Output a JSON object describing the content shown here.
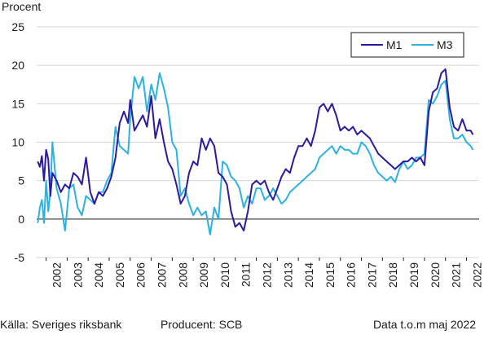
{
  "chart_data": {
    "type": "line",
    "ylabel": "Procent",
    "ylim": [
      -5,
      25
    ],
    "yticks": [
      -5,
      0,
      5,
      10,
      15,
      20,
      25
    ],
    "xlim": [
      2001.55,
      2022.6
    ],
    "xtick_labels": [
      "2002",
      "2003",
      "2004",
      "2005",
      "2006",
      "2007",
      "2008",
      "2009",
      "2010",
      "2011",
      "2012",
      "2013",
      "2014",
      "2015",
      "2016",
      "2017",
      "2018",
      "2019",
      "2020",
      "2021",
      "2022"
    ],
    "grid": "horizontal",
    "legend_position": "top-right",
    "series": [
      {
        "name": "M1",
        "color": "#2b1a9e",
        "x": [
          2001.6,
          2001.7,
          2001.8,
          2001.9,
          2002.0,
          2002.1,
          2002.2,
          2002.3,
          2002.5,
          2002.7,
          2002.9,
          2003.1,
          2003.3,
          2003.5,
          2003.7,
          2003.9,
          2004.1,
          2004.3,
          2004.5,
          2004.7,
          2004.9,
          2005.1,
          2005.3,
          2005.5,
          2005.7,
          2005.9,
          2006.0,
          2006.2,
          2006.4,
          2006.6,
          2006.8,
          2007.0,
          2007.2,
          2007.4,
          2007.6,
          2007.8,
          2008.0,
          2008.2,
          2008.4,
          2008.6,
          2008.8,
          2009.0,
          2009.2,
          2009.4,
          2009.6,
          2009.8,
          2010.0,
          2010.2,
          2010.4,
          2010.6,
          2010.8,
          2011.0,
          2011.2,
          2011.4,
          2011.6,
          2011.8,
          2012.0,
          2012.2,
          2012.4,
          2012.6,
          2012.8,
          2013.0,
          2013.2,
          2013.4,
          2013.6,
          2013.8,
          2014.0,
          2014.2,
          2014.4,
          2014.6,
          2014.8,
          2015.0,
          2015.2,
          2015.4,
          2015.6,
          2015.8,
          2016.0,
          2016.2,
          2016.4,
          2016.6,
          2016.8,
          2017.0,
          2017.2,
          2017.4,
          2017.6,
          2017.8,
          2018.0,
          2018.2,
          2018.4,
          2018.6,
          2018.8,
          2019.0,
          2019.2,
          2019.4,
          2019.6,
          2019.8,
          2020.0,
          2020.2,
          2020.4,
          2020.6,
          2020.8,
          2021.0,
          2021.2,
          2021.4,
          2021.6,
          2021.8,
          2022.0,
          2022.2,
          2022.3
        ],
        "values": [
          7.5,
          6.8,
          8.2,
          5.0,
          9.0,
          7.8,
          3.0,
          6.0,
          5.0,
          3.5,
          4.5,
          4.0,
          6.0,
          5.5,
          4.5,
          8.0,
          3.5,
          2.0,
          3.5,
          3.0,
          4.0,
          5.5,
          8.0,
          12.5,
          14.0,
          12.5,
          15.5,
          11.5,
          12.5,
          13.5,
          12.0,
          16.0,
          10.5,
          13.0,
          10.0,
          7.5,
          6.5,
          4.5,
          2.0,
          3.0,
          6.0,
          7.5,
          7.0,
          10.5,
          9.0,
          10.5,
          9.5,
          6.0,
          5.5,
          4.5,
          1.0,
          -1.0,
          -0.5,
          -1.5,
          1.0,
          4.5,
          5.0,
          4.5,
          5.0,
          3.5,
          2.5,
          4.0,
          5.5,
          6.5,
          6.0,
          8.0,
          9.5,
          9.5,
          10.5,
          9.5,
          11.5,
          14.5,
          15.0,
          14.0,
          15.0,
          13.5,
          11.5,
          12.0,
          11.5,
          12.0,
          11.0,
          11.5,
          11.0,
          10.5,
          9.5,
          8.5,
          8.0,
          7.5,
          7.0,
          6.5,
          7.0,
          7.5,
          7.5,
          8.0,
          7.5,
          8.0,
          7.0,
          14.0,
          16.5,
          17.0,
          19.0,
          19.5,
          14.5,
          12.0,
          11.5,
          13.0,
          11.5,
          11.5,
          11.0
        ]
      },
      {
        "name": "M3",
        "color": "#2bb2e0",
        "x": [
          2001.6,
          2001.7,
          2001.8,
          2001.9,
          2002.0,
          2002.1,
          2002.2,
          2002.3,
          2002.5,
          2002.7,
          2002.9,
          2003.1,
          2003.3,
          2003.5,
          2003.7,
          2003.9,
          2004.1,
          2004.3,
          2004.5,
          2004.7,
          2004.9,
          2005.1,
          2005.3,
          2005.5,
          2005.7,
          2005.9,
          2006.0,
          2006.2,
          2006.4,
          2006.6,
          2006.8,
          2007.0,
          2007.2,
          2007.4,
          2007.6,
          2007.8,
          2008.0,
          2008.2,
          2008.4,
          2008.6,
          2008.8,
          2009.0,
          2009.2,
          2009.4,
          2009.6,
          2009.8,
          2010.0,
          2010.2,
          2010.4,
          2010.6,
          2010.8,
          2011.0,
          2011.2,
          2011.4,
          2011.6,
          2011.8,
          2012.0,
          2012.2,
          2012.4,
          2012.6,
          2012.8,
          2013.0,
          2013.2,
          2013.4,
          2013.6,
          2013.8,
          2014.0,
          2014.2,
          2014.4,
          2014.6,
          2014.8,
          2015.0,
          2015.2,
          2015.4,
          2015.6,
          2015.8,
          2016.0,
          2016.2,
          2016.4,
          2016.6,
          2016.8,
          2017.0,
          2017.2,
          2017.4,
          2017.6,
          2017.8,
          2018.0,
          2018.2,
          2018.4,
          2018.6,
          2018.8,
          2019.0,
          2019.2,
          2019.4,
          2019.6,
          2019.8,
          2020.0,
          2020.2,
          2020.4,
          2020.6,
          2020.8,
          2021.0,
          2021.2,
          2021.4,
          2021.6,
          2021.8,
          2022.0,
          2022.2,
          2022.3
        ],
        "values": [
          -0.5,
          1.5,
          2.5,
          -0.5,
          5.0,
          1.0,
          3.5,
          10.0,
          4.0,
          2.0,
          -1.5,
          4.0,
          4.5,
          1.5,
          0.5,
          3.0,
          2.5,
          2.0,
          3.5,
          3.5,
          5.0,
          6.0,
          12.0,
          9.5,
          9.0,
          8.5,
          13.0,
          18.5,
          17.0,
          18.5,
          14.0,
          17.5,
          15.5,
          19.0,
          17.0,
          14.5,
          10.0,
          9.0,
          3.0,
          4.0,
          2.0,
          0.5,
          1.5,
          0.5,
          1.0,
          -2.0,
          1.5,
          0.0,
          7.5,
          7.0,
          5.5,
          5.0,
          4.0,
          1.5,
          3.0,
          2.0,
          4.0,
          4.0,
          2.5,
          3.0,
          4.0,
          3.0,
          2.0,
          2.5,
          3.5,
          4.0,
          4.5,
          5.0,
          5.5,
          6.0,
          6.5,
          8.0,
          8.5,
          9.0,
          9.5,
          8.5,
          9.5,
          9.0,
          9.0,
          8.5,
          8.5,
          10.0,
          9.5,
          8.5,
          7.0,
          6.0,
          5.5,
          5.0,
          5.5,
          4.8,
          6.5,
          7.5,
          6.5,
          7.0,
          8.0,
          8.0,
          8.5,
          15.5,
          15.0,
          16.0,
          17.5,
          18.0,
          13.0,
          10.5,
          10.5,
          11.0,
          10.0,
          9.5,
          9.0
        ]
      }
    ]
  },
  "footer": {
    "source": "Källa: Sveriges riksbank",
    "producer": "Producent: SCB",
    "data_note": "Data t.o.m maj 2022"
  }
}
